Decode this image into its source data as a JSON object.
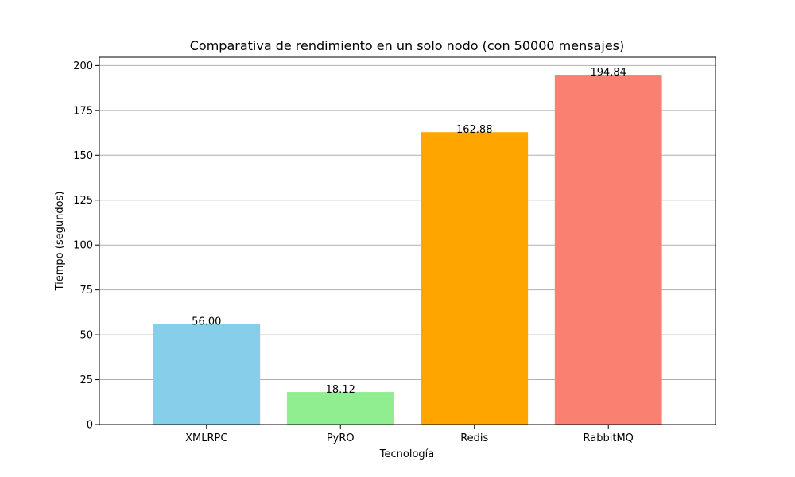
{
  "chart_data": {
    "type": "bar",
    "title": "Comparativa de rendimiento en un solo nodo (con 50000 mensajes)",
    "xlabel": "Tecnología",
    "ylabel": "Tiempo (segundos)",
    "categories": [
      "XMLRPC",
      "PyRO",
      "Redis",
      "RabbitMQ"
    ],
    "values": [
      56.0,
      18.12,
      162.88,
      194.84
    ],
    "value_labels": [
      "56.00",
      "18.12",
      "162.88",
      "194.84"
    ],
    "colors": [
      "#87ceeb",
      "#90ee90",
      "#ffa500",
      "#fa8072"
    ],
    "ylim": [
      0,
      204.6
    ],
    "yticks": [
      0,
      25,
      50,
      75,
      100,
      125,
      150,
      175,
      200
    ],
    "grid": "y-axis",
    "legend": "none"
  }
}
